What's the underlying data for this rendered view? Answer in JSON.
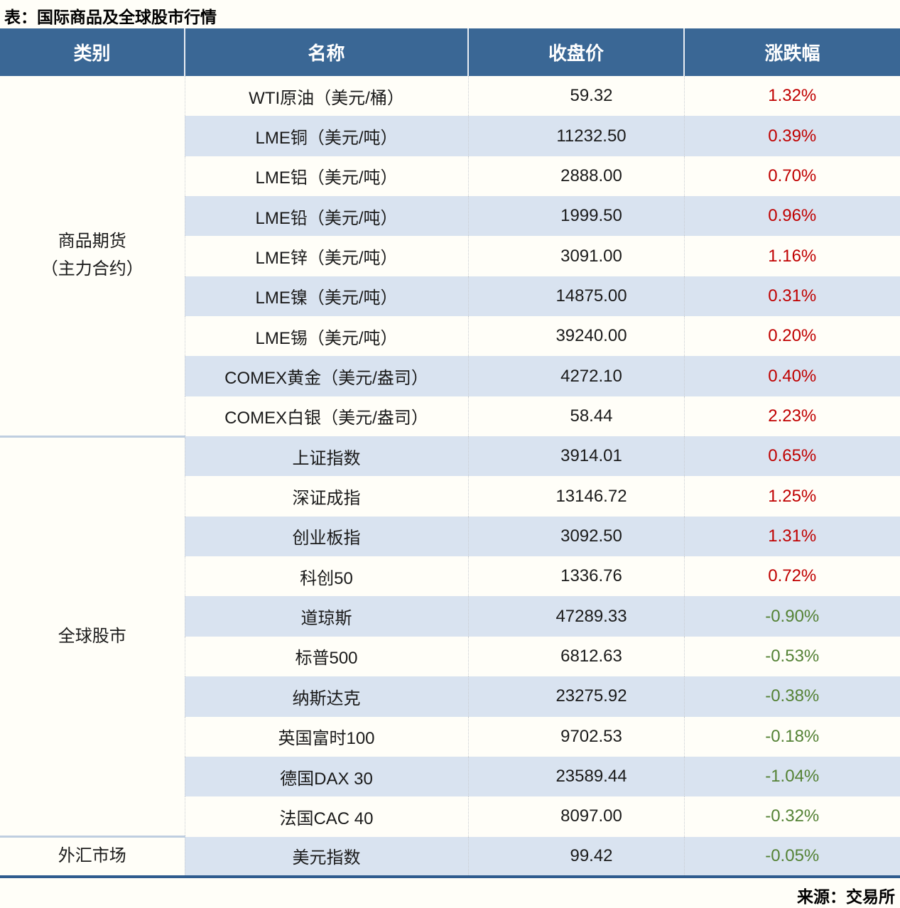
{
  "page": {
    "title": "表：国际商品及全球股市行情",
    "source": "来源：交易所"
  },
  "colors": {
    "header_bg": "#3A6795",
    "row_stripe": "#D9E3F0",
    "up_red": "#C00000",
    "down_green": "#548235",
    "table_bottom_border": "#2F5C8F"
  },
  "table": {
    "columns": [
      "类别",
      "名称",
      "收盘价",
      "涨跌幅"
    ],
    "groups": [
      {
        "category_lines": [
          "商品期货",
          "（主力合约）"
        ],
        "rows": [
          {
            "name": "WTI原油（美元/桶）",
            "close": "59.32",
            "change": "1.32%"
          },
          {
            "name": "LME铜（美元/吨）",
            "close": "11232.50",
            "change": "0.39%"
          },
          {
            "name": "LME铝（美元/吨）",
            "close": "2888.00",
            "change": "0.70%"
          },
          {
            "name": "LME铅（美元/吨）",
            "close": "1999.50",
            "change": "0.96%"
          },
          {
            "name": "LME锌（美元/吨）",
            "close": "3091.00",
            "change": "1.16%"
          },
          {
            "name": "LME镍（美元/吨）",
            "close": "14875.00",
            "change": "0.31%"
          },
          {
            "name": "LME锡（美元/吨）",
            "close": "39240.00",
            "change": "0.20%"
          },
          {
            "name": "COMEX黄金（美元/盎司）",
            "close": "4272.10",
            "change": "0.40%"
          },
          {
            "name": "COMEX白银（美元/盎司）",
            "close": "58.44",
            "change": "2.23%"
          }
        ]
      },
      {
        "category_lines": [
          "全球股市"
        ],
        "rows": [
          {
            "name": "上证指数",
            "close": "3914.01",
            "change": "0.65%"
          },
          {
            "name": "深证成指",
            "close": "13146.72",
            "change": "1.25%"
          },
          {
            "name": "创业板指",
            "close": "3092.50",
            "change": "1.31%"
          },
          {
            "name": "科创50",
            "close": "1336.76",
            "change": "0.72%"
          },
          {
            "name": "道琼斯",
            "close": "47289.33",
            "change": "-0.90%"
          },
          {
            "name": "标普500",
            "close": "6812.63",
            "change": "-0.53%"
          },
          {
            "name": "纳斯达克",
            "close": "23275.92",
            "change": "-0.38%"
          },
          {
            "name": "英国富时100",
            "close": "9702.53",
            "change": "-0.18%"
          },
          {
            "name": "德国DAX 30",
            "close": "23589.44",
            "change": "-1.04%"
          },
          {
            "name": "法国CAC 40",
            "close": "8097.00",
            "change": "-0.32%"
          }
        ]
      },
      {
        "category_lines": [
          "外汇市场"
        ],
        "rows": [
          {
            "name": "美元指数",
            "close": "99.42",
            "change": "-0.05%"
          }
        ]
      }
    ]
  }
}
